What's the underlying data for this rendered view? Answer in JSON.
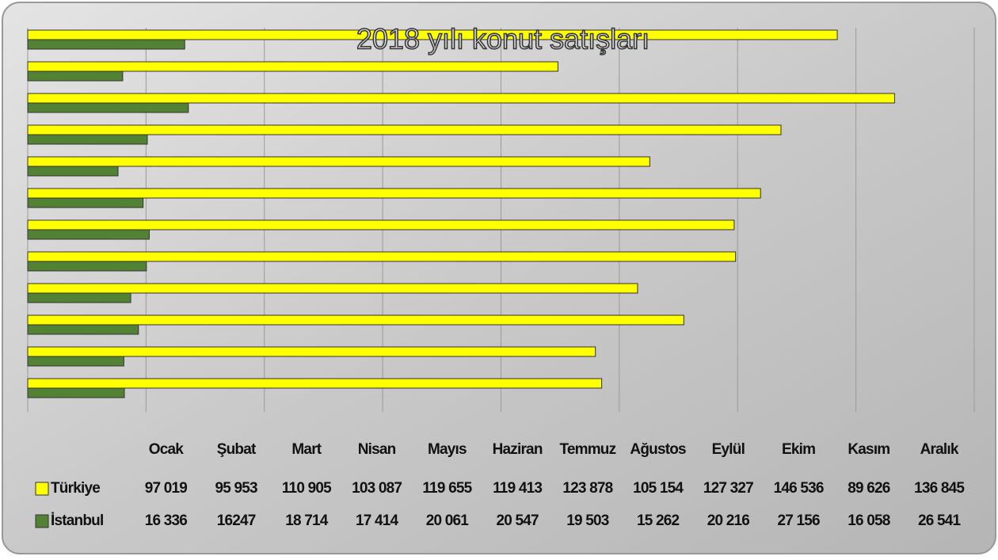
{
  "chart_data": {
    "type": "bar",
    "orientation": "horizontal",
    "title": "2018 yılı konut satışları",
    "categories": [
      "Ocak",
      "Şubat",
      "Mart",
      "Nisan",
      "Mayıs",
      "Haziran",
      "Temmuz",
      "Ağustos",
      "Eylül",
      "Ekim",
      "Kasım",
      "Aralık"
    ],
    "series": [
      {
        "name": "Türkiye",
        "color": "#ffff00",
        "values": [
          97019,
          95953,
          110905,
          103087,
          119655,
          119413,
          123878,
          105154,
          127327,
          146536,
          89626,
          136845
        ],
        "value_labels": [
          "97 019",
          "95 953",
          "110 905",
          "103 087",
          "119 655",
          "119 413",
          "123 878",
          "105 154",
          "127 327",
          "146 536",
          "89 626",
          "136 845"
        ]
      },
      {
        "name": "İstanbul",
        "color": "#548235",
        "values": [
          16336,
          16247,
          18714,
          17414,
          20061,
          20547,
          19503,
          15262,
          20216,
          27156,
          16058,
          26541
        ],
        "value_labels": [
          "16 336",
          "16247",
          "18 714",
          "17 414",
          "20 061",
          "20 547",
          "19 503",
          "15 262",
          "20 216",
          "27 156",
          "16 058",
          "26 541"
        ]
      }
    ],
    "xlim": [
      0,
      160000
    ],
    "xticks": [
      0,
      20000,
      40000,
      60000,
      80000,
      100000,
      120000,
      140000,
      160000
    ],
    "grid": true
  }
}
